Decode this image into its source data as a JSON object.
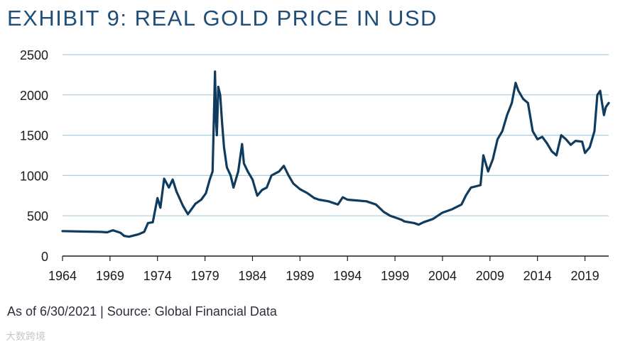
{
  "title": "EXHIBIT 9: REAL GOLD PRICE IN USD",
  "footnote": "As of 6/30/2021 | Source: Global Financial Data",
  "watermark": "大数跨境",
  "colors": {
    "line": "#0f3b5f",
    "grid": "#a8d0df",
    "title": "#1f4e79",
    "axis": "#1b1b1b"
  },
  "chart_data": {
    "type": "line",
    "title": "EXHIBIT 9: REAL GOLD PRICE IN USD",
    "xlabel": "",
    "ylabel": "",
    "xlim": [
      1964,
      2021.5
    ],
    "ylim": [
      0,
      2500
    ],
    "grid": true,
    "yticks": [
      0,
      500,
      1000,
      1500,
      2000,
      2500
    ],
    "xticks": [
      1964,
      1969,
      1974,
      1979,
      1984,
      1989,
      1994,
      1999,
      2004,
      2009,
      2014,
      2019
    ],
    "series": [
      {
        "name": "Real Gold Price",
        "x": [
          1964,
          1966,
          1968,
          1968.7,
          1969.3,
          1970.1,
          1970.5,
          1971,
          1972,
          1972.6,
          1973,
          1973.5,
          1974,
          1974.3,
          1974.7,
          1975.2,
          1975.6,
          1976,
          1976.7,
          1977.2,
          1978,
          1978.6,
          1979.1,
          1979.5,
          1979.8,
          1980.05,
          1980.15,
          1980.25,
          1980.4,
          1980.6,
          1980.8,
          1981,
          1981.3,
          1981.7,
          1982,
          1982.5,
          1982.9,
          1983.1,
          1983.5,
          1984,
          1984.5,
          1985,
          1985.5,
          1986,
          1986.8,
          1987.3,
          1987.8,
          1988.3,
          1989,
          1989.8,
          1990.5,
          1991,
          1992,
          1993,
          1993.5,
          1994,
          1995,
          1996,
          1997,
          1997.8,
          1998.5,
          1999,
          1999.7,
          2000,
          2001,
          2001.5,
          2002,
          2003,
          2004,
          2005,
          2006,
          2006.5,
          2007,
          2008,
          2008.3,
          2008.8,
          2009.3,
          2009.8,
          2010.3,
          2010.8,
          2011.3,
          2011.7,
          2012.0,
          2012.5,
          2013,
          2013.5,
          2014,
          2014.5,
          2015,
          2015.5,
          2016,
          2016.5,
          2017,
          2017.5,
          2018,
          2018.7,
          2019,
          2019.5,
          2020,
          2020.3,
          2020.6,
          2020.8,
          2021.0,
          2021.2,
          2021.5
        ],
        "values": [
          310,
          305,
          300,
          295,
          320,
          290,
          250,
          240,
          270,
          300,
          410,
          420,
          720,
          600,
          960,
          850,
          950,
          800,
          620,
          520,
          650,
          700,
          780,
          950,
          1050,
          2290,
          1700,
          1500,
          2100,
          2000,
          1650,
          1350,
          1100,
          1000,
          850,
          1050,
          1390,
          1150,
          1050,
          950,
          750,
          820,
          850,
          1000,
          1050,
          1120,
          1000,
          900,
          830,
          780,
          720,
          700,
          680,
          640,
          730,
          700,
          690,
          680,
          640,
          550,
          500,
          480,
          450,
          430,
          410,
          390,
          420,
          460,
          540,
          580,
          640,
          760,
          850,
          880,
          1250,
          1050,
          1200,
          1450,
          1550,
          1750,
          1900,
          2150,
          2050,
          1950,
          1900,
          1550,
          1450,
          1480,
          1400,
          1300,
          1250,
          1500,
          1450,
          1380,
          1430,
          1420,
          1280,
          1350,
          1550,
          2000,
          2050,
          1900,
          1750,
          1850,
          1900
        ]
      }
    ]
  }
}
